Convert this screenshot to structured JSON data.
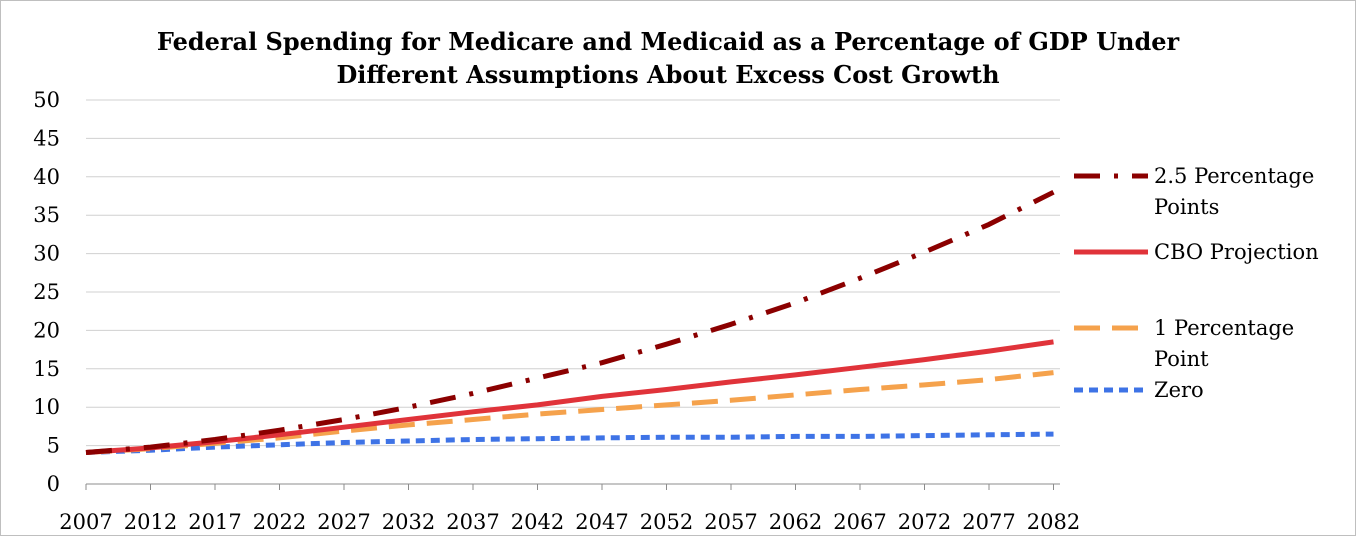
{
  "chart_data": {
    "type": "line",
    "title": "Federal Spending for Medicare and Medicaid as a Percentage of GDP Under Different Assumptions About Excess Cost Growth",
    "title_lines": [
      "Federal Spending for Medicare and Medicaid as a Percentage of GDP Under",
      "Different Assumptions About Excess Cost Growth"
    ],
    "xlabel": "",
    "ylabel": "",
    "ylim": [
      0,
      50
    ],
    "y_ticks": [
      0,
      5,
      10,
      15,
      20,
      25,
      30,
      35,
      40,
      45,
      50
    ],
    "x": [
      2007,
      2012,
      2017,
      2022,
      2027,
      2032,
      2037,
      2042,
      2047,
      2052,
      2057,
      2062,
      2067,
      2072,
      2077,
      2082
    ],
    "grid": true,
    "legend_position": "right",
    "series": [
      {
        "name": "2.5 Percentage Points",
        "name_lines": [
          "2.5 Percentage",
          "Points"
        ],
        "color": "#8b0000",
        "dash": "dash-dot",
        "values": [
          4.1,
          4.8,
          5.8,
          7.0,
          8.4,
          10.0,
          11.8,
          13.8,
          15.8,
          18.2,
          20.8,
          23.6,
          26.8,
          30.2,
          33.8,
          38.0
        ]
      },
      {
        "name": "CBO Projection",
        "name_lines": [
          "CBO Projection"
        ],
        "color": "#e0333a",
        "dash": "solid",
        "values": [
          4.1,
          4.7,
          5.5,
          6.4,
          7.4,
          8.4,
          9.4,
          10.3,
          11.4,
          12.3,
          13.3,
          14.2,
          15.2,
          16.2,
          17.3,
          18.5
        ]
      },
      {
        "name": "1 Percentage Point",
        "name_lines": [
          "1 Percentage",
          "Point"
        ],
        "color": "#f5a24c",
        "dash": "long-dash",
        "values": [
          4.1,
          4.6,
          5.3,
          6.0,
          6.9,
          7.7,
          8.4,
          9.1,
          9.7,
          10.3,
          10.9,
          11.6,
          12.3,
          12.9,
          13.6,
          14.5
        ]
      },
      {
        "name": "Zero",
        "name_lines": [
          "Zero"
        ],
        "color": "#3e73e6",
        "dash": "short-dash",
        "values": [
          4.1,
          4.4,
          4.8,
          5.1,
          5.4,
          5.6,
          5.8,
          5.9,
          6.0,
          6.1,
          6.1,
          6.2,
          6.2,
          6.3,
          6.4,
          6.5
        ]
      }
    ]
  }
}
